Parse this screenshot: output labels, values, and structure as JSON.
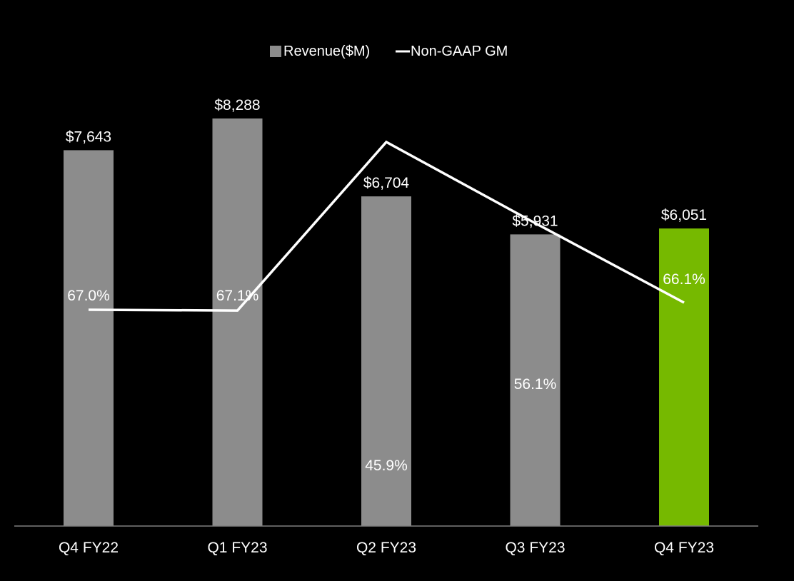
{
  "chart_data": {
    "type": "bar",
    "title": "",
    "xlabel": "",
    "ylabel": "",
    "categories": [
      "Q4 FY22",
      "Q1 FY23",
      "Q2 FY23",
      "Q3 FY23",
      "Q4 FY23"
    ],
    "series": [
      {
        "name": "Revenue($M)",
        "kind": "bar",
        "values": [
          7643,
          8288,
          6704,
          5931,
          6051
        ],
        "labels": [
          "$7,643",
          "$8,288",
          "$6,704",
          "$5,931",
          "$6,051"
        ],
        "color": "#8c8c8c",
        "highlight_index": 4,
        "highlight_color": "#76b900"
      },
      {
        "name": "Non-GAAP GM",
        "kind": "line",
        "values": [
          67.0,
          67.1,
          45.9,
          56.1,
          66.1
        ],
        "labels": [
          "67.0%",
          "67.1%",
          "45.9%",
          "56.1%",
          "66.1%"
        ],
        "color": "#ffffff"
      }
    ],
    "legend": {
      "position": "top-center",
      "items": [
        {
          "label": "Revenue($M)",
          "symbol": "square",
          "color": "#8c8c8c"
        },
        {
          "label": "Non-GAAP GM",
          "symbol": "line",
          "color": "#ffffff"
        }
      ]
    },
    "ylim_bar": [
      0,
      8800
    ],
    "ylim_line": [
      40,
      80
    ],
    "grid": false,
    "background": "#000000",
    "axis_color": "#7f7f7f"
  }
}
